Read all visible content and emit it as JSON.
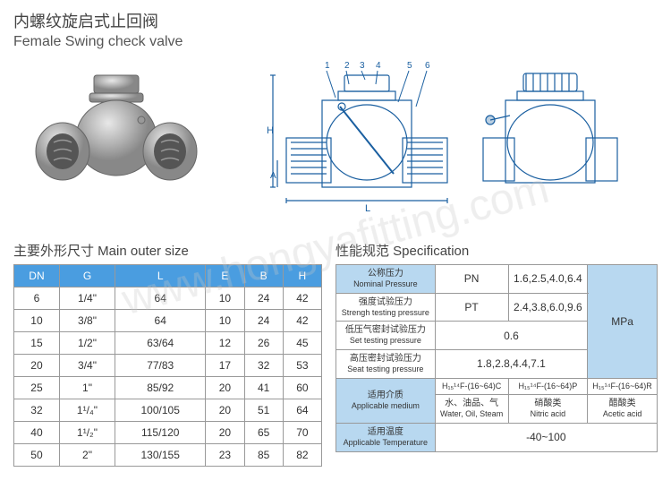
{
  "title_cn": "内螺纹旋启式止回阀",
  "title_en": "Female Swing check valve",
  "watermark": "www.hongyafitting.com",
  "size_title": "主要外形尺寸 Main outer size",
  "spec_title": "性能规范 Specification",
  "size_table": {
    "headers": [
      "DN",
      "G",
      "L",
      "E",
      "B",
      "H"
    ],
    "rows": [
      [
        "6",
        "1/4\"",
        "64",
        "10",
        "24",
        "42"
      ],
      [
        "10",
        "3/8\"",
        "64",
        "10",
        "24",
        "42"
      ],
      [
        "15",
        "1/2\"",
        "63/64",
        "12",
        "26",
        "45"
      ],
      [
        "20",
        "3/4\"",
        "77/83",
        "17",
        "32",
        "53"
      ],
      [
        "25",
        "1\"",
        "85/92",
        "20",
        "41",
        "60"
      ],
      [
        "32",
        "1¹/₄\"",
        "100/105",
        "20",
        "51",
        "64"
      ],
      [
        "40",
        "1¹/₂\"",
        "115/120",
        "20",
        "65",
        "70"
      ],
      [
        "50",
        "2\"",
        "130/155",
        "23",
        "85",
        "82"
      ]
    ]
  },
  "spec_table": {
    "r1_label_cn": "公称压力",
    "r1_label_en": "Nominal Pressure",
    "r1_c1": "PN",
    "r1_c2": "1.6,2.5,4.0,6.4",
    "r2_label_cn": "强度试验压力",
    "r2_label_en": "Strengh testing pressure",
    "r2_c1": "PT",
    "r2_c2": "2.4,3.8,6.0,9.6",
    "r3_label_cn": "低压气密封试验压力",
    "r3_label_en": "Set testing pressure",
    "r3_c2": "0.6",
    "r4_label_cn": "高压密封试验压力",
    "r4_label_en": "Seat testing pressure",
    "r4_c2": "1.8,2.8,4.4,7.1",
    "unit": "MPa",
    "r5_label_cn": "适用介质",
    "r5_label_en": "Applicable medium",
    "r5_c1": "H₁₅¹⁴F-(16~64)C",
    "r5_c2": "H₁₅¹⁴F-(16~64)P",
    "r5_c3": "H₁₅¹⁴F-(16~64)R",
    "r6_c1_cn": "水、油品、气",
    "r6_c1_en": "Water, Oil, Steam",
    "r6_c2_cn": "硝酸类",
    "r6_c2_en": "Nitric acid",
    "r6_c3_cn": "醋酸类",
    "r6_c3_en": "Acetic acid",
    "r7_label_cn": "适用温度",
    "r7_label_en": "Applicable Temperature",
    "r7_val": "-40~100"
  },
  "diagram_callouts": [
    "1",
    "2",
    "3",
    "4",
    "5",
    "6"
  ],
  "diagram_dims": [
    "H",
    "A",
    "L"
  ]
}
